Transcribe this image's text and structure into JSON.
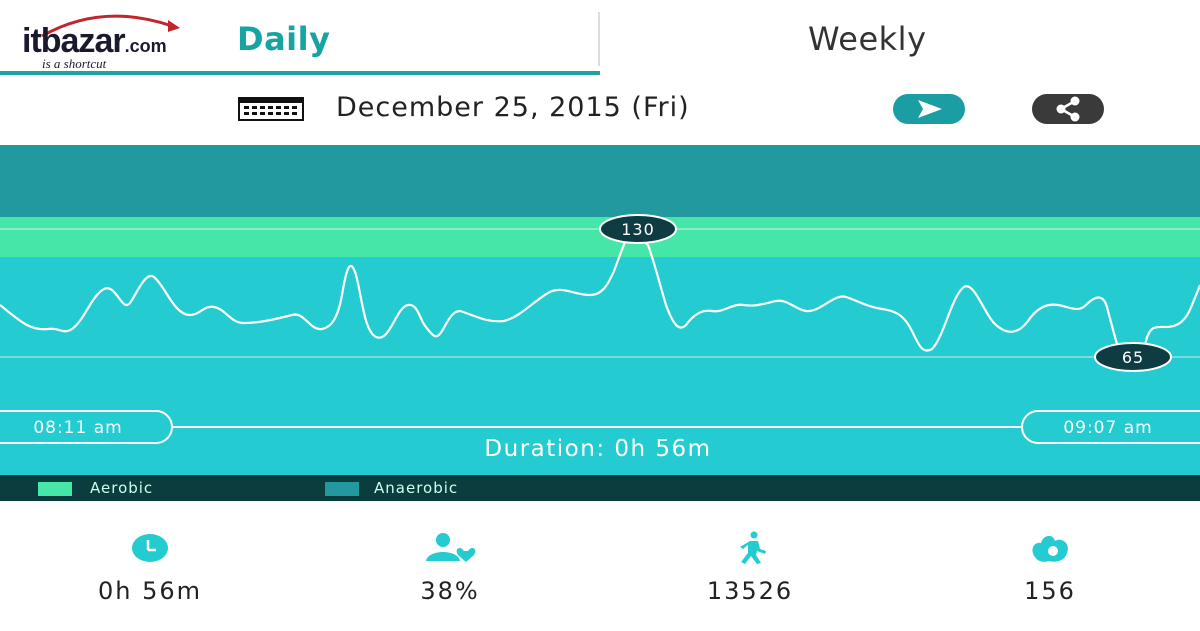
{
  "brand": {
    "name_main": "itbazar",
    "name_domain": ".com",
    "tagline": "is a shortcut"
  },
  "tabs": [
    {
      "label": "Daily",
      "active": true
    },
    {
      "label": "Weekly",
      "active": false
    }
  ],
  "date_bar": {
    "date": "December 25, 2015 (Fri)",
    "calendar_icon": "calendar-icon",
    "next_icon": "chevron-right-icon",
    "share_icon": "share-icon"
  },
  "chart": {
    "max_label": "130",
    "min_label": "65",
    "start_time": "08:11 am",
    "end_time": "09:07 am",
    "duration": "Duration: 0h 56m",
    "colors": {
      "anaerobic": "#21999e",
      "aerobic": "#45e6a8",
      "base": "#24cbd0",
      "line": "#ffffff",
      "marker": "#0f3b43"
    }
  },
  "chart_data": {
    "type": "line",
    "x_range": [
      "08:11 am",
      "09:07 am"
    ],
    "y_markers": {
      "max": 130,
      "min": 65
    },
    "zones": [
      "Aerobic",
      "Anaerobic"
    ]
  },
  "legend": [
    {
      "label": "Aerobic",
      "color": "#45e6a8"
    },
    {
      "label": "Anaerobic",
      "color": "#21999e"
    }
  ],
  "stats": [
    {
      "icon": "clock-icon",
      "value": "0h 56m"
    },
    {
      "icon": "user-heart-icon",
      "value": "38%"
    },
    {
      "icon": "walking-icon",
      "value": "13526"
    },
    {
      "icon": "flame-icon",
      "value": "156"
    }
  ]
}
